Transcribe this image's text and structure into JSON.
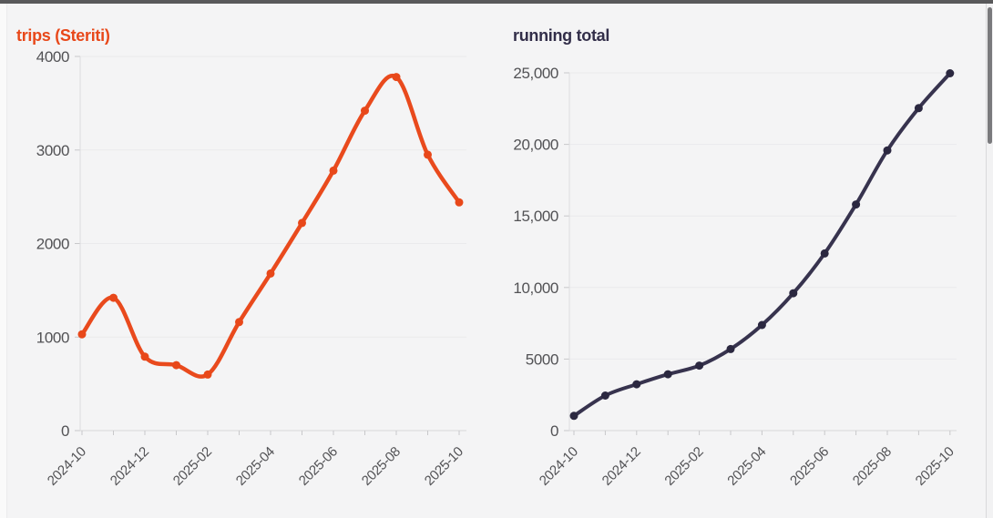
{
  "page": {
    "background": "#f4f4f5",
    "top_bar_color": "#59595b",
    "grid_color": "#eaeaec",
    "axis_color": "#dcdcde",
    "baseline_color": "#d7d7d9",
    "tick_mark_color": "#c8c8ca",
    "tick_label_color": "#525255"
  },
  "chart_data": [
    {
      "type": "line",
      "title": "trips (Steriti)",
      "title_color": "#e8481a",
      "line_color": "#e94a1d",
      "point_color": "#e8481a",
      "x": [
        "2024-10",
        "2024-11",
        "2024-12",
        "2025-01",
        "2025-02",
        "2025-03",
        "2025-04",
        "2025-05",
        "2025-06",
        "2025-07",
        "2025-08",
        "2025-09",
        "2025-10"
      ],
      "values": [
        1030,
        1420,
        790,
        700,
        600,
        1160,
        1680,
        2220,
        2780,
        3420,
        3780,
        2950,
        2440
      ],
      "ylim": [
        0,
        4000
      ],
      "y_ticks": [
        {
          "v": 0,
          "label": "0"
        },
        {
          "v": 1000,
          "label": "1000"
        },
        {
          "v": 2000,
          "label": "2000"
        },
        {
          "v": 3000,
          "label": "3000"
        },
        {
          "v": 4000,
          "label": "4000"
        }
      ],
      "x_tick_labels": [
        "2024-10",
        "2024-12",
        "2025-02",
        "2025-04",
        "2025-06",
        "2025-08",
        "2025-10"
      ],
      "x_label_every": 2,
      "x_axis_rotation": -45,
      "grid": true,
      "legend": "none"
    },
    {
      "type": "line",
      "title": "running total",
      "title_color": "#322e49",
      "line_color": "#37334e",
      "point_color": "#2b2840",
      "x": [
        "2024-10",
        "2024-11",
        "2024-12",
        "2025-01",
        "2025-02",
        "2025-03",
        "2025-04",
        "2025-05",
        "2025-06",
        "2025-07",
        "2025-08",
        "2025-09",
        "2025-10"
      ],
      "values": [
        1030,
        2450,
        3240,
        3940,
        4540,
        5700,
        7380,
        9600,
        12380,
        15800,
        19580,
        22530,
        24970
      ],
      "ylim": [
        0,
        25000
      ],
      "y_ticks": [
        {
          "v": 0,
          "label": "0"
        },
        {
          "v": 5000,
          "label": "5000"
        },
        {
          "v": 10000,
          "label": "10,000"
        },
        {
          "v": 15000,
          "label": "15,000"
        },
        {
          "v": 20000,
          "label": "20,000"
        },
        {
          "v": 25000,
          "label": "25,000"
        }
      ],
      "x_tick_labels": [
        "2024-10",
        "2024-12",
        "2025-02",
        "2025-04",
        "2025-06",
        "2025-08",
        "2025-10"
      ],
      "x_label_every": 2,
      "x_axis_rotation": -45,
      "grid": true,
      "legend": "none"
    }
  ]
}
